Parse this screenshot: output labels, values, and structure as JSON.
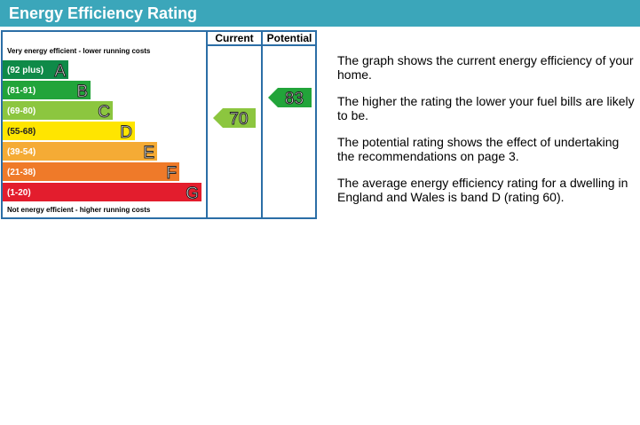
{
  "header": {
    "title": "Energy Efficiency Rating"
  },
  "rating_chart": {
    "top_label": "Very energy efficient - lower running costs",
    "bottom_label": "Not energy efficient - higher running costs",
    "columns": [
      "Current",
      "Potential"
    ],
    "bands": [
      {
        "range": "(92 plus)",
        "letter": "A",
        "color": "#0f8a48"
      },
      {
        "range": "(81-91)",
        "letter": "B",
        "color": "#22a43a"
      },
      {
        "range": "(69-80)",
        "letter": "C",
        "color": "#8cc63f"
      },
      {
        "range": "(55-68)",
        "letter": "D",
        "color": "#ffe500"
      },
      {
        "range": "(39-54)",
        "letter": "E",
        "color": "#f5ab35"
      },
      {
        "range": "(21-38)",
        "letter": "F",
        "color": "#ef7a29"
      },
      {
        "range": "(1-20)",
        "letter": "G",
        "color": "#e31d2d"
      }
    ],
    "current": {
      "value": 70,
      "band": 2
    },
    "potential": {
      "value": 83,
      "band": 1
    }
  },
  "notes": [
    "The graph shows the current energy efficiency of your home.",
    "The higher the rating the lower your fuel bills are likely to be.",
    "The potential rating shows the effect of undertaking the recommendations on page 3.",
    "The average energy efficiency rating for a dwelling in England and Wales is band D (rating 60)."
  ]
}
